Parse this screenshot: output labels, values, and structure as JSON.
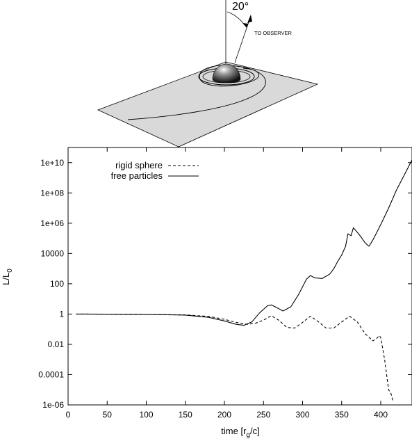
{
  "diagram": {
    "angle_label": "20°",
    "observer_label": "TO OBSERVER"
  },
  "chart_data": {
    "type": "line",
    "title": "",
    "xlabel": "time [r_g/c]",
    "xlabel_main": "time [r",
    "xlabel_sub": "g",
    "xlabel_tail": "/c]",
    "ylabel": "L/L_0",
    "ylabel_main": "L/L",
    "ylabel_sub": "0",
    "y_scale": "log",
    "xlim": [
      0,
      440
    ],
    "ylim": [
      1e-06,
      100000000000.0
    ],
    "x_ticks": [
      0,
      50,
      100,
      150,
      200,
      250,
      300,
      350,
      400
    ],
    "y_ticks": [
      1e-06,
      0.0001,
      0.01,
      1,
      100,
      10000.0,
      1000000.0,
      100000000.0,
      10000000000.0
    ],
    "x_tick_labels": [
      "0",
      "50",
      "100",
      "150",
      "200",
      "250",
      "300",
      "350",
      "400"
    ],
    "y_tick_labels": [
      "1e-06",
      "0.0001",
      "0.01",
      "1",
      "100",
      "10000",
      "1e+06",
      "1e+08",
      "1e+10"
    ],
    "grid": false,
    "legend_position": "top-left",
    "series": [
      {
        "name": "rigid sphere",
        "style": "dashed",
        "x": [
          10,
          50,
          100,
          150,
          180,
          200,
          215,
          230,
          240,
          250,
          260,
          270,
          280,
          290,
          300,
          310,
          320,
          330,
          340,
          350,
          360,
          370,
          380,
          390,
          395,
          398,
          400,
          405,
          410,
          413,
          416
        ],
        "y": [
          1.0,
          0.98,
          0.95,
          0.88,
          0.7,
          0.45,
          0.28,
          0.21,
          0.25,
          0.4,
          0.78,
          0.38,
          0.13,
          0.12,
          0.28,
          0.72,
          0.32,
          0.12,
          0.12,
          0.3,
          0.72,
          0.3,
          0.05,
          0.017,
          0.025,
          0.038,
          0.028,
          0.001,
          1e-05,
          6e-06,
          1.5e-06
        ]
      },
      {
        "name": "free particles",
        "style": "solid",
        "x": [
          10,
          50,
          100,
          150,
          180,
          200,
          215,
          225,
          235,
          245,
          255,
          260,
          265,
          275,
          285,
          295,
          305,
          310,
          315,
          325,
          335,
          340,
          345,
          350,
          355,
          358,
          362,
          365,
          370,
          375,
          380,
          385,
          390,
          395,
          400,
          410,
          420,
          430,
          440
        ],
        "y": [
          1.0,
          0.98,
          0.95,
          0.85,
          0.6,
          0.35,
          0.21,
          0.18,
          0.3,
          1.2,
          3.5,
          4.0,
          3.0,
          1.6,
          3.0,
          20,
          200,
          350,
          250,
          220,
          450,
          1000,
          3000,
          8000,
          30000,
          200000,
          150000,
          500000,
          250000,
          120000,
          50000,
          30000,
          80000,
          250000,
          800000,
          10000000.0,
          150000000.0,
          1500000000.0,
          15000000000.0
        ]
      }
    ]
  }
}
